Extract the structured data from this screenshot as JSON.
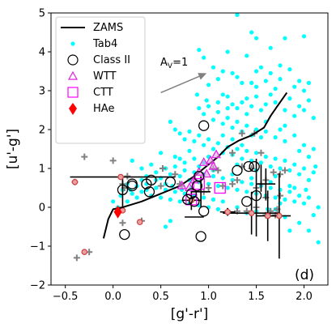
{
  "chart_data": {
    "type": "scatter",
    "xlabel": "[g'-r']",
    "ylabel": "[u'-g']",
    "xlim": [
      -0.65,
      2.25
    ],
    "ylim": [
      -2,
      5
    ],
    "xticks": [
      -0.5,
      0.0,
      0.5,
      1.0,
      1.5,
      2.0
    ],
    "xtick_labels": [
      "−0.5",
      "0.0",
      "0.5",
      "1.0",
      "1.5",
      "2.0"
    ],
    "yticks": [
      -2,
      -1,
      0,
      1,
      2,
      3,
      4,
      5
    ],
    "ytick_labels": [
      "−2",
      "−1",
      "0",
      "1",
      "2",
      "3",
      "4",
      "5"
    ],
    "panel_label": "(d)",
    "legend_position": "top-left",
    "colors": {
      "zams": "#000000",
      "tab4": "#00ffff",
      "class2": "#000000",
      "wtt": "#dd22dd",
      "ctt": "#ff00ff",
      "hae": "#ff0000",
      "plus": "#808080",
      "red_open": "#d04040"
    },
    "legend": [
      {
        "label": "ZAMS",
        "marker": "line"
      },
      {
        "label": "Tab4",
        "marker": "dot"
      },
      {
        "label": "Class II",
        "marker": "circle"
      },
      {
        "label": "WTT",
        "marker": "triangle"
      },
      {
        "label": "CTT",
        "marker": "square"
      },
      {
        "label": "HAe",
        "marker": "diamond"
      }
    ],
    "reddening_vector": {
      "label_main": "A",
      "label_sub": "V",
      "label_value": "=1",
      "x0": 0.5,
      "y0": 2.95,
      "x1": 0.98,
      "y1": 3.45
    },
    "zams": [
      [
        -0.1,
        -0.8
      ],
      [
        -0.05,
        -0.3
      ],
      [
        0.0,
        -0.05
      ],
      [
        0.1,
        0.0
      ],
      [
        0.3,
        0.15
      ],
      [
        0.5,
        0.35
      ],
      [
        0.7,
        0.55
      ],
      [
        0.85,
        0.8
      ],
      [
        1.0,
        1.1
      ],
      [
        1.1,
        1.3
      ],
      [
        1.2,
        1.55
      ],
      [
        1.32,
        1.72
      ],
      [
        1.45,
        1.85
      ],
      [
        1.58,
        2.05
      ],
      [
        1.65,
        2.35
      ],
      [
        1.72,
        2.6
      ],
      [
        1.82,
        2.95
      ]
    ],
    "tab4": [
      [
        0.9,
        4.05
      ],
      [
        0.95,
        3.85
      ],
      [
        1.05,
        3.6
      ],
      [
        1.1,
        3.3
      ],
      [
        1.15,
        3.5
      ],
      [
        1.25,
        3.45
      ],
      [
        1.3,
        3.35
      ],
      [
        1.35,
        3.2
      ],
      [
        1.45,
        3.2
      ],
      [
        1.5,
        3.1
      ],
      [
        1.6,
        3.25
      ],
      [
        1.7,
        3.05
      ],
      [
        1.75,
        3.3
      ],
      [
        1.2,
        4.0
      ],
      [
        1.45,
        4.5
      ],
      [
        1.5,
        4.35
      ],
      [
        1.9,
        3.1
      ],
      [
        1.95,
        3.25
      ],
      [
        2.0,
        3.0
      ],
      [
        2.05,
        3.2
      ],
      [
        1.3,
        4.95
      ],
      [
        2.0,
        4.4
      ],
      [
        1.8,
        4.35
      ],
      [
        1.1,
        2.7
      ],
      [
        1.15,
        2.9
      ],
      [
        1.2,
        2.85
      ],
      [
        1.25,
        2.65
      ],
      [
        1.3,
        2.55
      ],
      [
        1.35,
        2.7
      ],
      [
        1.4,
        2.8
      ],
      [
        1.45,
        2.6
      ],
      [
        1.5,
        2.85
      ],
      [
        1.55,
        2.5
      ],
      [
        1.6,
        2.65
      ],
      [
        1.65,
        2.9
      ],
      [
        1.7,
        2.7
      ],
      [
        1.8,
        2.5
      ],
      [
        1.85,
        2.8
      ],
      [
        1.9,
        2.35
      ],
      [
        1.95,
        2.6
      ],
      [
        2.0,
        2.5
      ],
      [
        2.05,
        2.75
      ],
      [
        2.1,
        2.3
      ],
      [
        0.95,
        2.4
      ],
      [
        1.0,
        2.6
      ],
      [
        1.05,
        2.25
      ],
      [
        1.1,
        2.45
      ],
      [
        1.15,
        2.15
      ],
      [
        1.2,
        2.3
      ],
      [
        1.25,
        2.05
      ],
      [
        1.3,
        2.2
      ],
      [
        1.35,
        1.95
      ],
      [
        1.4,
        2.1
      ],
      [
        1.45,
        1.85
      ],
      [
        1.5,
        2.0
      ],
      [
        1.55,
        1.8
      ],
      [
        1.6,
        1.95
      ],
      [
        1.7,
        1.8
      ],
      [
        1.75,
        2.0
      ],
      [
        1.8,
        1.7
      ],
      [
        1.9,
        1.85
      ],
      [
        2.0,
        1.6
      ],
      [
        2.1,
        1.5
      ],
      [
        0.6,
        2.2
      ],
      [
        0.65,
        2.0
      ],
      [
        0.7,
        1.9
      ],
      [
        0.75,
        1.75
      ],
      [
        0.8,
        1.95
      ],
      [
        0.85,
        1.7
      ],
      [
        0.9,
        1.85
      ],
      [
        0.95,
        1.6
      ],
      [
        1.0,
        1.75
      ],
      [
        1.05,
        1.5
      ],
      [
        1.1,
        1.65
      ],
      [
        1.15,
        1.4
      ],
      [
        1.2,
        1.55
      ],
      [
        1.25,
        1.35
      ],
      [
        1.3,
        1.5
      ],
      [
        1.35,
        1.25
      ],
      [
        1.4,
        1.45
      ],
      [
        1.45,
        1.2
      ],
      [
        1.5,
        1.4
      ],
      [
        1.55,
        1.15
      ],
      [
        1.6,
        1.3
      ],
      [
        1.65,
        1.05
      ],
      [
        1.7,
        1.25
      ],
      [
        1.75,
        1.0
      ],
      [
        1.8,
        1.2
      ],
      [
        1.85,
        0.95
      ],
      [
        1.9,
        1.1
      ],
      [
        1.95,
        0.85
      ],
      [
        2.0,
        1.0
      ],
      [
        2.05,
        0.7
      ],
      [
        2.1,
        0.9
      ],
      [
        0.2,
        1.2
      ],
      [
        0.3,
        1.0
      ],
      [
        0.35,
        0.8
      ],
      [
        0.4,
        1.1
      ],
      [
        0.45,
        0.9
      ],
      [
        0.5,
        0.75
      ],
      [
        0.55,
        1.0
      ],
      [
        0.6,
        0.85
      ],
      [
        0.65,
        1.05
      ],
      [
        0.7,
        0.8
      ],
      [
        0.75,
        0.95
      ],
      [
        0.8,
        0.7
      ],
      [
        0.85,
        0.9
      ],
      [
        0.9,
        0.65
      ],
      [
        0.95,
        0.85
      ],
      [
        1.0,
        0.6
      ],
      [
        1.05,
        0.8
      ],
      [
        1.1,
        0.55
      ],
      [
        1.15,
        0.75
      ],
      [
        1.2,
        0.5
      ],
      [
        1.25,
        0.7
      ],
      [
        1.3,
        0.45
      ],
      [
        1.35,
        0.65
      ],
      [
        1.4,
        0.4
      ],
      [
        1.45,
        0.6
      ],
      [
        1.5,
        0.35
      ],
      [
        1.55,
        0.55
      ],
      [
        1.6,
        0.3
      ],
      [
        1.65,
        0.5
      ],
      [
        1.7,
        0.25
      ],
      [
        1.75,
        0.45
      ],
      [
        1.8,
        0.2
      ],
      [
        1.85,
        0.4
      ],
      [
        1.9,
        0.15
      ],
      [
        1.95,
        0.3
      ],
      [
        2.0,
        0.1
      ],
      [
        2.05,
        0.25
      ],
      [
        2.1,
        -0.2
      ],
      [
        2.15,
        0.0
      ],
      [
        1.95,
        -0.4
      ],
      [
        2.05,
        -0.6
      ],
      [
        2.15,
        -0.9
      ],
      [
        1.85,
        -0.6
      ],
      [
        0.1,
        0.45
      ],
      [
        0.15,
        0.6
      ],
      [
        0.2,
        0.35
      ],
      [
        0.25,
        0.55
      ],
      [
        0.3,
        0.4
      ],
      [
        0.35,
        0.6
      ],
      [
        0.4,
        0.3
      ],
      [
        0.45,
        0.5
      ],
      [
        0.5,
        0.25
      ],
      [
        0.55,
        0.45
      ],
      [
        0.6,
        0.2
      ],
      [
        0.65,
        0.4
      ],
      [
        0.7,
        0.15
      ],
      [
        0.75,
        0.35
      ],
      [
        0.8,
        0.1
      ],
      [
        0.85,
        0.3
      ],
      [
        0.9,
        0.05
      ],
      [
        0.95,
        0.25
      ],
      [
        1.0,
        0.0
      ],
      [
        1.05,
        0.2
      ],
      [
        1.1,
        -0.05
      ],
      [
        1.15,
        0.15
      ],
      [
        1.2,
        -0.1
      ],
      [
        1.3,
        0.0
      ],
      [
        1.4,
        -0.15
      ],
      [
        1.5,
        -0.1
      ],
      [
        1.6,
        -0.2
      ],
      [
        1.7,
        -0.05
      ],
      [
        1.8,
        -0.25
      ],
      [
        0.6,
        -0.35
      ],
      [
        0.55,
        -0.5
      ],
      [
        0.8,
        1.45
      ],
      [
        1.0,
        1.3
      ],
      [
        1.3,
        1.1
      ],
      [
        1.5,
        0.95
      ],
      [
        1.7,
        0.8
      ],
      [
        0.95,
        1.15
      ],
      [
        1.05,
        0.95
      ],
      [
        1.25,
        0.85
      ],
      [
        1.45,
        0.75
      ],
      [
        1.65,
        0.65
      ],
      [
        1.85,
        0.55
      ],
      [
        0.5,
        1.4
      ],
      [
        0.7,
        1.25
      ],
      [
        0.9,
        1.05
      ],
      [
        1.2,
        2.55
      ],
      [
        1.4,
        2.4
      ],
      [
        1.6,
        2.2
      ],
      [
        1.8,
        2.1
      ],
      [
        1.55,
        3.6
      ],
      [
        1.65,
        3.45
      ],
      [
        1.75,
        3.65
      ],
      [
        1.85,
        3.55
      ],
      [
        1.65,
        4.1
      ],
      [
        1.4,
        3.9
      ],
      [
        1.0,
        3.15
      ],
      [
        0.88,
        2.9
      ],
      [
        0.98,
        2.75
      ],
      [
        0.9,
        2.55
      ],
      [
        1.5,
        3.5
      ],
      [
        1.15,
        1.85
      ],
      [
        1.25,
        1.75
      ],
      [
        1.35,
        1.6
      ],
      [
        0.85,
        1.25
      ],
      [
        0.75,
        1.15
      ],
      [
        0.65,
        1.3
      ],
      [
        0.55,
        0.6
      ],
      [
        0.45,
        0.7
      ],
      [
        0.35,
        0.45
      ],
      [
        0.25,
        0.25
      ],
      [
        0.15,
        0.15
      ],
      [
        0.05,
        0.0
      ],
      [
        0.0,
        0.15
      ],
      [
        0.08,
        0.3
      ],
      [
        0.18,
        0.45
      ],
      [
        1.95,
        1.45
      ],
      [
        2.05,
        1.3
      ],
      [
        2.12,
        1.05
      ],
      [
        1.9,
        0.5
      ],
      [
        2.02,
        0.45
      ],
      [
        1.75,
        0.1
      ],
      [
        1.62,
        -0.05
      ],
      [
        0.3,
        0.7
      ],
      [
        0.62,
        0.55
      ],
      [
        0.72,
        0.45
      ],
      [
        0.82,
        0.5
      ]
    ],
    "class2": [
      [
        0.95,
        2.1
      ],
      [
        0.1,
        0.45
      ],
      [
        0.2,
        0.6
      ],
      [
        0.38,
        0.4
      ],
      [
        0.4,
        0.7
      ],
      [
        0.35,
        0.6
      ],
      [
        0.6,
        0.65
      ],
      [
        0.82,
        0.35
      ],
      [
        0.88,
        0.55
      ],
      [
        0.9,
        0.8
      ],
      [
        0.78,
        0.2
      ],
      [
        0.85,
        0.15
      ],
      [
        0.95,
        -0.1
      ],
      [
        0.12,
        -0.7
      ],
      [
        0.92,
        -0.75
      ],
      [
        1.4,
        0.15
      ],
      [
        1.48,
        1.05
      ],
      [
        1.42,
        1.05
      ],
      [
        1.5,
        0.3
      ],
      [
        1.3,
        0.95
      ],
      [
        0.2,
        0.55
      ]
    ],
    "wtt": [
      [
        0.95,
        1.15
      ],
      [
        1.02,
        1.2
      ],
      [
        1.08,
        1.35
      ],
      [
        0.85,
        0.7
      ],
      [
        0.98,
        0.85
      ],
      [
        1.05,
        1.05
      ],
      [
        0.72,
        0.55
      ],
      [
        0.8,
        0.5
      ],
      [
        0.9,
        0.9
      ]
    ],
    "ctt": [
      [
        0.82,
        0.2
      ],
      [
        1.12,
        0.5
      ],
      [
        0.9,
        0.6
      ]
    ],
    "hae": [
      [
        0.05,
        -0.12
      ]
    ],
    "plus": [
      [
        -0.3,
        1.3
      ],
      [
        0.0,
        1.2
      ],
      [
        0.52,
        1.0
      ],
      [
        0.65,
        0.85
      ],
      [
        0.7,
        0.6
      ],
      [
        0.72,
        0.55
      ],
      [
        1.0,
        0.5
      ],
      [
        1.05,
        1.0
      ],
      [
        1.1,
        0.95
      ],
      [
        1.25,
        1.4
      ],
      [
        1.35,
        1.9
      ],
      [
        1.48,
        1.9
      ],
      [
        1.55,
        1.4
      ],
      [
        1.68,
        0.9
      ],
      [
        1.75,
        0.85
      ],
      [
        1.8,
        0.95
      ],
      [
        1.5,
        0.5
      ],
      [
        1.55,
        0.6
      ],
      [
        1.6,
        0.7
      ],
      [
        1.72,
        -0.05
      ],
      [
        1.65,
        -0.1
      ],
      [
        1.7,
        -0.2
      ],
      [
        1.5,
        0.0
      ],
      [
        1.4,
        -0.1
      ],
      [
        1.3,
        -0.1
      ],
      [
        1.2,
        -0.1
      ],
      [
        1.6,
        -0.2
      ],
      [
        0.3,
        -0.35
      ],
      [
        0.1,
        -0.4
      ],
      [
        -0.25,
        -1.15
      ],
      [
        -0.38,
        -1.3
      ],
      [
        -0.4,
        0.65
      ],
      [
        0.1,
        0.6
      ],
      [
        0.12,
        0.5
      ],
      [
        0.15,
        0.8
      ],
      [
        0.5,
        0.55
      ],
      [
        0.95,
        0.4
      ],
      [
        1.15,
        0.55
      ],
      [
        1.25,
        0.6
      ],
      [
        1.3,
        0.7
      ],
      [
        1.35,
        1.05
      ],
      [
        1.45,
        1.0
      ],
      [
        1.6,
        0.25
      ],
      [
        1.75,
        0.3
      ]
    ],
    "red_open": [
      [
        -0.4,
        0.65
      ],
      [
        0.08,
        0.78
      ],
      [
        0.1,
        -0.08
      ],
      [
        0.28,
        -0.38
      ],
      [
        -0.3,
        -1.15
      ],
      [
        1.2,
        -0.12
      ],
      [
        1.45,
        -0.15
      ],
      [
        1.62,
        -0.22
      ],
      [
        1.74,
        -0.22
      ],
      [
        0.82,
        0.18
      ]
    ],
    "error_bars": [
      {
        "x": -0.4,
        "y": 0.65,
        "xerr": 0.0,
        "yerr": 0.0
      },
      {
        "x": 0.1,
        "y": 0.78,
        "xerr": 0.55,
        "yerr": 0.0
      },
      {
        "x": 0.1,
        "y": 0.42,
        "xerr": 0.0,
        "yerr": 0.4
      },
      {
        "x": 0.1,
        "y": -0.05,
        "xerr": 0.0,
        "yerr": 0.0
      },
      {
        "x": 0.28,
        "y": -0.38,
        "xerr": 0.0,
        "yerr": 0.0
      },
      {
        "x": 0.82,
        "y": 0.18,
        "xerr": 0.1,
        "yerr": 0.25
      },
      {
        "x": 0.92,
        "y": 0.4,
        "xerr": 0.1,
        "yerr": 0.4
      },
      {
        "x": 0.85,
        "y": -0.25,
        "xerr": 0.1,
        "yerr": 0.0
      },
      {
        "x": 1.2,
        "y": -0.12,
        "xerr": 0.08,
        "yerr": 0.1
      },
      {
        "x": 1.45,
        "y": -0.15,
        "xerr": 0.3,
        "yerr": 0.55
      },
      {
        "x": 1.5,
        "y": 0.25,
        "xerr": 0.0,
        "yerr": 1.0
      },
      {
        "x": 1.62,
        "y": -0.22,
        "xerr": 0.12,
        "yerr": 0.65
      },
      {
        "x": 1.74,
        "y": -0.22,
        "xerr": 0.12,
        "yerr": 1.1
      },
      {
        "x": 1.6,
        "y": 0.6,
        "xerr": 0.1,
        "yerr": 0.4
      },
      {
        "x": 1.55,
        "y": 0.75,
        "xerr": 0.0,
        "yerr": 0.35
      },
      {
        "x": 1.65,
        "y": 0.95,
        "xerr": 0.0,
        "yerr": 0.0
      }
    ]
  }
}
